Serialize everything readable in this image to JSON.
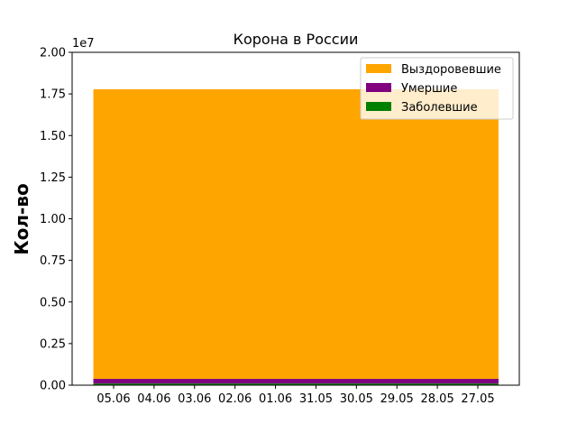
{
  "chart_data": {
    "type": "bar",
    "stacked": true,
    "title": "Корона в России",
    "xlabel": "",
    "ylabel": "Кол-во",
    "ylim": [
      0,
      20000000
    ],
    "y_offset_label": "1e7",
    "y_ticks": [
      0,
      2500000,
      5000000,
      7500000,
      10000000,
      12500000,
      15000000,
      17500000,
      20000000
    ],
    "y_tick_labels": [
      "0.00",
      "0.25",
      "0.50",
      "0.75",
      "1.00",
      "1.25",
      "1.50",
      "1.75",
      "2.00"
    ],
    "categories": [
      "05.06",
      "04.06",
      "03.06",
      "02.06",
      "01.06",
      "31.05",
      "30.05",
      "29.05",
      "28.05",
      "27.05"
    ],
    "series": [
      {
        "name": "Заболевшие",
        "color": "#008000",
        "values": [
          100000,
          100000,
          100000,
          100000,
          100000,
          100000,
          100000,
          100000,
          100000,
          100000
        ]
      },
      {
        "name": "Умершие",
        "color": "#800080",
        "values": [
          280000,
          280000,
          280000,
          280000,
          280000,
          280000,
          280000,
          280000,
          280000,
          280000
        ]
      },
      {
        "name": "Выздоровевшие",
        "color": "#ffa500",
        "values": [
          17400000,
          17400000,
          17400000,
          17400000,
          17400000,
          17400000,
          17400000,
          17400000,
          17400000,
          17400000
        ]
      }
    ],
    "legend_order": [
      "Выздоровевшие",
      "Умершие",
      "Заболевшие"
    ],
    "legend_position": "top-right",
    "grid": false
  }
}
